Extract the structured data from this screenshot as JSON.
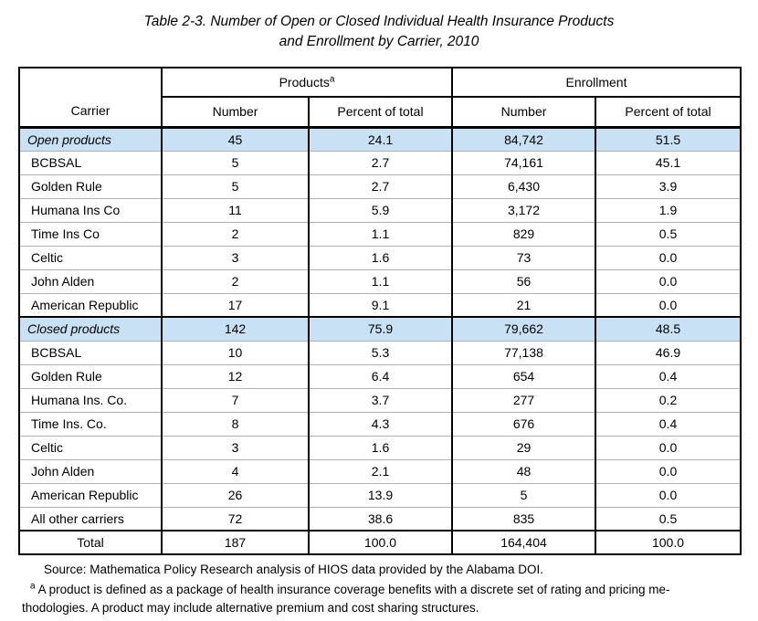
{
  "title": {
    "line1": "Table 2-3. Number of Open or Closed Individual Health Insurance Products",
    "line2": "and Enrollment by Carrier, 2010"
  },
  "colors": {
    "section_row_highlight": "#c9e1f5",
    "row_separator": "#b0b0b0",
    "border": "#000000"
  },
  "table": {
    "header": {
      "carrier_label": "Carrier",
      "products_label": "Products",
      "products_superscript": "a",
      "enrollment_label": "Enrollment",
      "subheaders": [
        "Number",
        "Percent of total",
        "Number",
        "Percent of total"
      ]
    },
    "rows": [
      {
        "type": "section",
        "carrier": "Open products",
        "values": [
          "45",
          "24.1",
          "84,742",
          "51.5"
        ]
      },
      {
        "type": "data",
        "carrier": "BCBSAL",
        "values": [
          "5",
          "2.7",
          "74,161",
          "45.1"
        ]
      },
      {
        "type": "data",
        "carrier": "Golden Rule",
        "values": [
          "5",
          "2.7",
          "6,430",
          "3.9"
        ]
      },
      {
        "type": "data",
        "carrier": "Humana Ins Co",
        "values": [
          "11",
          "5.9",
          "3,172",
          "1.9"
        ]
      },
      {
        "type": "data",
        "carrier": "Time Ins Co",
        "values": [
          "2",
          "1.1",
          "829",
          "0.5"
        ]
      },
      {
        "type": "data",
        "carrier": "Celtic",
        "values": [
          "3",
          "1.6",
          "73",
          "0.0"
        ]
      },
      {
        "type": "data",
        "carrier": "John Alden",
        "values": [
          "2",
          "1.1",
          "56",
          "0.0"
        ]
      },
      {
        "type": "data",
        "carrier": "American Republic",
        "values": [
          "17",
          "9.1",
          "21",
          "0.0"
        ]
      },
      {
        "type": "section",
        "carrier": "Closed products",
        "values": [
          "142",
          "75.9",
          "79,662",
          "48.5"
        ]
      },
      {
        "type": "data",
        "carrier": "BCBSAL",
        "values": [
          "10",
          "5.3",
          "77,138",
          "46.9"
        ]
      },
      {
        "type": "data",
        "carrier": "Golden Rule",
        "values": [
          "12",
          "6.4",
          "654",
          "0.4"
        ]
      },
      {
        "type": "data",
        "carrier": "Humana Ins. Co.",
        "values": [
          "7",
          "3.7",
          "277",
          "0.2"
        ]
      },
      {
        "type": "data",
        "carrier": "Time Ins. Co.",
        "values": [
          "8",
          "4.3",
          "676",
          "0.4"
        ]
      },
      {
        "type": "data",
        "carrier": "Celtic",
        "values": [
          "3",
          "1.6",
          "29",
          "0.0"
        ]
      },
      {
        "type": "data",
        "carrier": "John Alden",
        "values": [
          "4",
          "2.1",
          "48",
          "0.0"
        ]
      },
      {
        "type": "data",
        "carrier": "American Republic",
        "values": [
          "26",
          "13.9",
          "5",
          "0.0"
        ]
      },
      {
        "type": "data",
        "carrier": "All other carriers",
        "values": [
          "72",
          "38.6",
          "835",
          "0.5"
        ]
      },
      {
        "type": "total",
        "carrier": "Total",
        "values": [
          "187",
          "100.0",
          "164,404",
          "100.0"
        ]
      }
    ]
  },
  "notes": {
    "source": "Source: Mathematica Policy Research analysis of HIOS data provided by the Alabama DOI.",
    "footnote_marker": "a",
    "footnote_line1": " A product is defined as a package of health insurance coverage benefits with a discrete set of rating and pricing me-",
    "footnote_line2": "thodologies. A product may include alternative premium and cost sharing structures."
  }
}
